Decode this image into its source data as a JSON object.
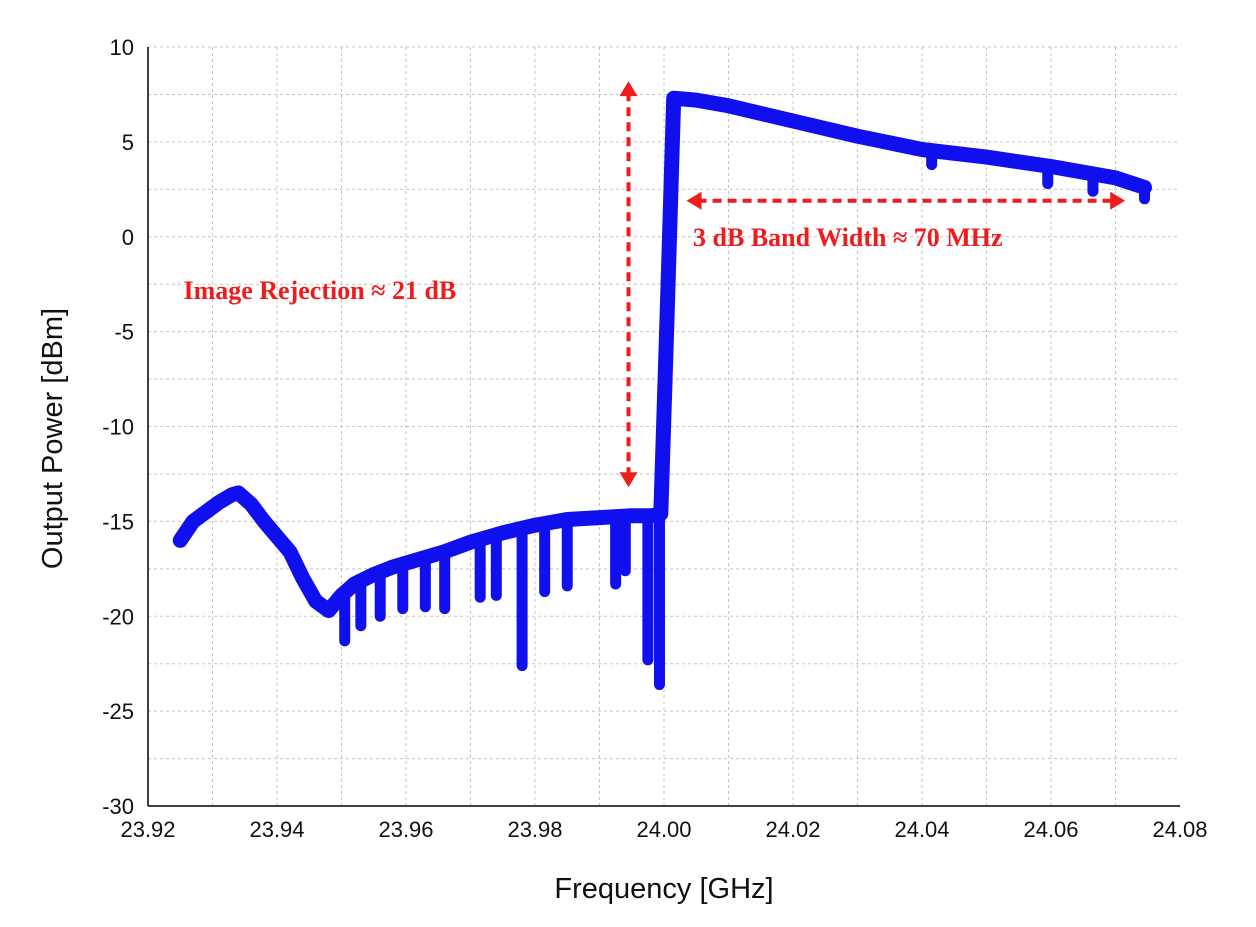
{
  "chart_data": {
    "type": "line",
    "title": "",
    "xlabel": "Frequency [GHz]",
    "ylabel": "Output Power [dBm]",
    "xlim": [
      23.92,
      24.08
    ],
    "ylim": [
      -30,
      10
    ],
    "x_ticks": [
      "23.92",
      "23.94",
      "23.96",
      "23.98",
      "24.00",
      "24.02",
      "24.04",
      "24.06",
      "24.08"
    ],
    "y_ticks": [
      "10",
      "5",
      "0",
      "-5",
      "-10",
      "-15",
      "-20",
      "-25",
      "-30"
    ],
    "grid": true,
    "legend": "none",
    "series": [
      {
        "color": "#1010ee",
        "x": [
          23.925,
          23.927,
          23.929,
          23.931,
          23.933,
          23.934,
          23.936,
          23.938,
          23.94,
          23.942,
          23.944,
          23.946,
          23.948,
          23.95,
          23.952,
          23.955,
          23.958,
          23.962,
          23.966,
          23.97,
          23.975,
          23.98,
          23.985,
          23.99,
          23.995,
          23.998,
          23.9995,
          24.0005,
          24.0015,
          24.005,
          24.01,
          24.02,
          24.03,
          24.04,
          24.05,
          24.06,
          24.07,
          24.0745
        ],
        "values": [
          -16.0,
          -15.0,
          -14.5,
          -14.0,
          -13.6,
          -13.5,
          -14.1,
          -15.0,
          -15.8,
          -16.6,
          -18.0,
          -19.2,
          -19.7,
          -18.9,
          -18.3,
          -17.8,
          -17.4,
          -17.0,
          -16.6,
          -16.1,
          -15.6,
          -15.2,
          -14.9,
          -14.8,
          -14.7,
          -14.7,
          -14.6,
          -4.0,
          7.3,
          7.2,
          6.9,
          6.1,
          5.3,
          4.6,
          4.2,
          3.7,
          3.1,
          2.6
        ]
      }
    ],
    "dips": [
      {
        "x": 23.9505,
        "y": -21.3
      },
      {
        "x": 23.953,
        "y": -20.5
      },
      {
        "x": 23.956,
        "y": -20.0
      },
      {
        "x": 23.9595,
        "y": -19.6
      },
      {
        "x": 23.963,
        "y": -19.5
      },
      {
        "x": 23.966,
        "y": -19.6
      },
      {
        "x": 23.9715,
        "y": -19.0
      },
      {
        "x": 23.974,
        "y": -18.9
      },
      {
        "x": 23.978,
        "y": -22.6
      },
      {
        "x": 23.9815,
        "y": -18.7
      },
      {
        "x": 23.985,
        "y": -18.4
      },
      {
        "x": 23.9925,
        "y": -18.3
      },
      {
        "x": 23.994,
        "y": -17.6
      },
      {
        "x": 23.9975,
        "y": -22.3
      },
      {
        "x": 23.9993,
        "y": -23.6
      },
      {
        "x": 24.0415,
        "y": 3.8
      },
      {
        "x": 24.0595,
        "y": 2.8
      },
      {
        "x": 24.0665,
        "y": 2.4
      },
      {
        "x": 24.0745,
        "y": 2.0
      }
    ],
    "annotations": [
      {
        "text": "Image Rejection ≈ 21 dB",
        "anchor_x": 23.9255,
        "anchor_y": -2.8,
        "arrow": {
          "x1": 23.9945,
          "y1": -13.2,
          "x2": 23.9945,
          "y2": 8.2,
          "direction": "vertical"
        }
      },
      {
        "text": "3 dB Band Width ≈ 70 MHz",
        "anchor_x": 24.0045,
        "anchor_y": 0.0,
        "arrow": {
          "x1": 24.0035,
          "y1": 1.9,
          "x2": 24.0715,
          "y2": 1.9,
          "direction": "horizontal"
        }
      }
    ],
    "annotation_color": "#ee1c1c"
  }
}
